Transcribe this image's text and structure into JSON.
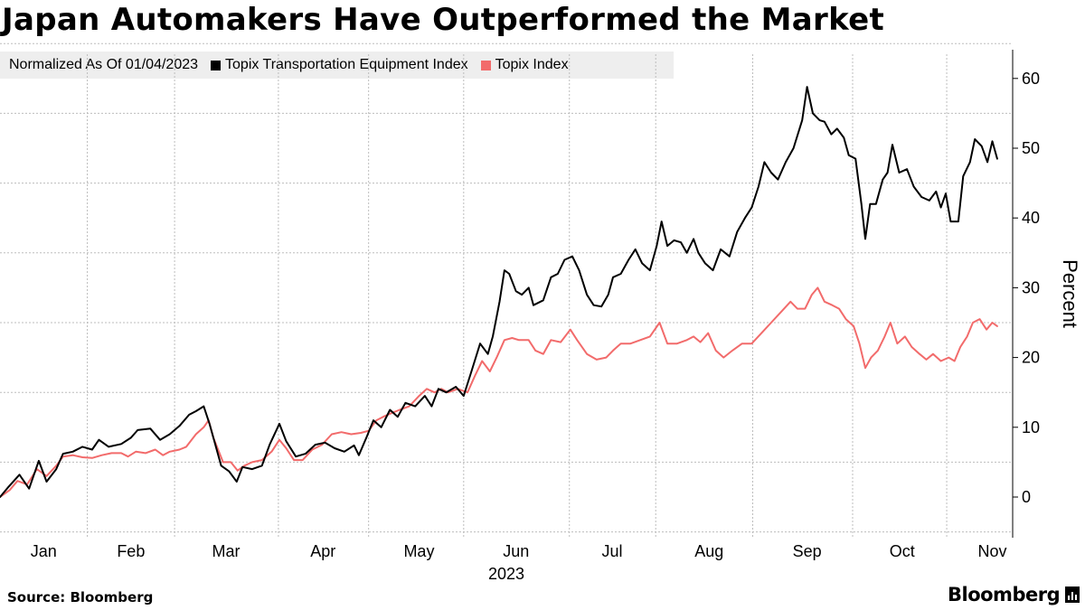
{
  "title": "Japan Automakers Have Outperformed the Market",
  "legend": {
    "lead": "Normalized As Of 01/04/2023",
    "entries": [
      {
        "label": "Topix Transportation Equipment Index",
        "color": "#000000"
      },
      {
        "label": "Topix Index",
        "color": "#f26b6b"
      }
    ]
  },
  "source": "Source: Bloomberg",
  "brand": "Bloomberg",
  "chart_data": {
    "type": "line",
    "title": "Japan Automakers Have Outperformed the Market",
    "xlabel": "2023",
    "ylabel": "Percent",
    "ylim": [
      -5,
      65
    ],
    "y_ticks": [
      0,
      10,
      20,
      30,
      40,
      50,
      60
    ],
    "grid": true,
    "year_label": "2023",
    "x_domain": [
      0,
      10.3
    ],
    "month_ticks": [
      {
        "label": "Jan",
        "x": 0.45
      },
      {
        "label": "Feb",
        "x": 1.35
      },
      {
        "label": "Mar",
        "x": 2.33
      },
      {
        "label": "Apr",
        "x": 3.33
      },
      {
        "label": "May",
        "x": 4.32
      },
      {
        "label": "Jun",
        "x": 5.32
      },
      {
        "label": "Jul",
        "x": 6.31
      },
      {
        "label": "Aug",
        "x": 7.31
      },
      {
        "label": "Sep",
        "x": 8.32
      },
      {
        "label": "Oct",
        "x": 9.3
      },
      {
        "label": "Nov",
        "x": 10.23
      }
    ],
    "grid_x": [
      0.9,
      1.8,
      2.87,
      3.8,
      4.78,
      5.87,
      6.76,
      7.76,
      8.79,
      9.76
    ],
    "series": [
      {
        "name": "Topix Transportation Equipment Index",
        "color": "#000000",
        "points": [
          [
            0,
            0
          ],
          [
            0.09,
            1.5
          ],
          [
            0.2,
            3.2
          ],
          [
            0.3,
            1.2
          ],
          [
            0.4,
            5.2
          ],
          [
            0.48,
            2.2
          ],
          [
            0.58,
            4
          ],
          [
            0.65,
            6.2
          ],
          [
            0.75,
            6.5
          ],
          [
            0.85,
            7.2
          ],
          [
            0.95,
            6.8
          ],
          [
            1.02,
            8.2
          ],
          [
            1.12,
            7.2
          ],
          [
            1.25,
            7.6
          ],
          [
            1.35,
            8.5
          ],
          [
            1.42,
            9.6
          ],
          [
            1.55,
            9.8
          ],
          [
            1.65,
            8.2
          ],
          [
            1.75,
            9
          ],
          [
            1.85,
            10.2
          ],
          [
            1.95,
            11.8
          ],
          [
            2.02,
            12.3
          ],
          [
            2.1,
            13
          ],
          [
            2.16,
            10.5
          ],
          [
            2.28,
            4.5
          ],
          [
            2.36,
            3.7
          ],
          [
            2.44,
            2.2
          ],
          [
            2.5,
            4.3
          ],
          [
            2.6,
            4
          ],
          [
            2.7,
            4.5
          ],
          [
            2.78,
            7.5
          ],
          [
            2.88,
            10.5
          ],
          [
            2.95,
            8
          ],
          [
            3.05,
            5.8
          ],
          [
            3.15,
            6.2
          ],
          [
            3.25,
            7.5
          ],
          [
            3.35,
            7.8
          ],
          [
            3.45,
            7
          ],
          [
            3.55,
            6.5
          ],
          [
            3.65,
            7.4
          ],
          [
            3.7,
            6
          ],
          [
            3.78,
            8.6
          ],
          [
            3.85,
            11
          ],
          [
            3.93,
            10
          ],
          [
            4.02,
            12.5
          ],
          [
            4.1,
            11.5
          ],
          [
            4.18,
            13.5
          ],
          [
            4.28,
            13
          ],
          [
            4.38,
            14.5
          ],
          [
            4.45,
            13
          ],
          [
            4.52,
            15.5
          ],
          [
            4.6,
            15
          ],
          [
            4.7,
            15.8
          ],
          [
            4.78,
            14.5
          ],
          [
            4.86,
            18
          ],
          [
            4.95,
            22
          ],
          [
            5.03,
            20.5
          ],
          [
            5.08,
            23
          ],
          [
            5.15,
            28
          ],
          [
            5.2,
            32.5
          ],
          [
            5.25,
            32
          ],
          [
            5.32,
            29.5
          ],
          [
            5.38,
            29
          ],
          [
            5.45,
            30
          ],
          [
            5.5,
            27.5
          ],
          [
            5.6,
            28.2
          ],
          [
            5.68,
            31.5
          ],
          [
            5.75,
            32
          ],
          [
            5.82,
            34
          ],
          [
            5.9,
            34.5
          ],
          [
            5.97,
            32.5
          ],
          [
            6.05,
            29
          ],
          [
            6.12,
            27.5
          ],
          [
            6.2,
            27.3
          ],
          [
            6.27,
            29
          ],
          [
            6.32,
            31.5
          ],
          [
            6.4,
            32
          ],
          [
            6.48,
            34
          ],
          [
            6.55,
            35.5
          ],
          [
            6.62,
            33.5
          ],
          [
            6.7,
            32.5
          ],
          [
            6.77,
            36
          ],
          [
            6.82,
            39.5
          ],
          [
            6.88,
            36
          ],
          [
            6.95,
            36.8
          ],
          [
            7.02,
            36.5
          ],
          [
            7.08,
            35
          ],
          [
            7.15,
            37
          ],
          [
            7.2,
            35
          ],
          [
            7.27,
            33.5
          ],
          [
            7.35,
            32.5
          ],
          [
            7.43,
            35.5
          ],
          [
            7.52,
            34.5
          ],
          [
            7.6,
            38
          ],
          [
            7.68,
            40
          ],
          [
            7.75,
            41.5
          ],
          [
            7.82,
            44.5
          ],
          [
            7.88,
            48
          ],
          [
            7.95,
            46.5
          ],
          [
            8.02,
            45.5
          ],
          [
            8.1,
            48
          ],
          [
            8.18,
            50
          ],
          [
            8.27,
            54
          ],
          [
            8.32,
            58.8
          ],
          [
            8.38,
            55
          ],
          [
            8.45,
            54
          ],
          [
            8.5,
            53.8
          ],
          [
            8.57,
            52
          ],
          [
            8.63,
            52.8
          ],
          [
            8.7,
            51.5
          ],
          [
            8.75,
            49
          ],
          [
            8.82,
            48.5
          ],
          [
            8.88,
            42
          ],
          [
            8.92,
            37
          ],
          [
            8.97,
            42
          ],
          [
            9.03,
            42
          ],
          [
            9.1,
            45.5
          ],
          [
            9.15,
            46.5
          ],
          [
            9.2,
            50.5
          ],
          [
            9.27,
            46.5
          ],
          [
            9.35,
            47
          ],
          [
            9.42,
            44.5
          ],
          [
            9.5,
            43
          ],
          [
            9.58,
            42.5
          ],
          [
            9.65,
            43.8
          ],
          [
            9.7,
            41.5
          ],
          [
            9.75,
            43.5
          ],
          [
            9.8,
            39.5
          ],
          [
            9.88,
            39.5
          ],
          [
            9.93,
            46
          ],
          [
            10,
            48
          ],
          [
            10.05,
            51.3
          ],
          [
            10.12,
            50.3
          ],
          [
            10.18,
            48
          ],
          [
            10.23,
            51
          ],
          [
            10.28,
            48.5
          ]
        ]
      },
      {
        "name": "Topix Index",
        "color": "#f26b6b",
        "points": [
          [
            0,
            0
          ],
          [
            0.1,
            1
          ],
          [
            0.18,
            2.3
          ],
          [
            0.28,
            1.8
          ],
          [
            0.38,
            4
          ],
          [
            0.48,
            3
          ],
          [
            0.58,
            4.5
          ],
          [
            0.65,
            5.8
          ],
          [
            0.75,
            6
          ],
          [
            0.85,
            5.7
          ],
          [
            0.95,
            5.6
          ],
          [
            1.05,
            6
          ],
          [
            1.15,
            6.3
          ],
          [
            1.25,
            6.3
          ],
          [
            1.32,
            5.8
          ],
          [
            1.4,
            6.5
          ],
          [
            1.5,
            6.3
          ],
          [
            1.6,
            6.8
          ],
          [
            1.68,
            6
          ],
          [
            1.75,
            6.5
          ],
          [
            1.85,
            6.8
          ],
          [
            1.92,
            7.2
          ],
          [
            2.02,
            9
          ],
          [
            2.1,
            10
          ],
          [
            2.15,
            11
          ],
          [
            2.2,
            8.5
          ],
          [
            2.3,
            5
          ],
          [
            2.38,
            5
          ],
          [
            2.45,
            3.8
          ],
          [
            2.52,
            4.5
          ],
          [
            2.6,
            5
          ],
          [
            2.7,
            5.3
          ],
          [
            2.8,
            6.5
          ],
          [
            2.88,
            8.2
          ],
          [
            2.95,
            7
          ],
          [
            3.03,
            5.3
          ],
          [
            3.12,
            5.3
          ],
          [
            3.22,
            6.8
          ],
          [
            3.32,
            7.5
          ],
          [
            3.42,
            9
          ],
          [
            3.52,
            9.3
          ],
          [
            3.62,
            9
          ],
          [
            3.72,
            9.2
          ],
          [
            3.8,
            9.5
          ],
          [
            3.88,
            11
          ],
          [
            3.95,
            11.5
          ],
          [
            4.03,
            12
          ],
          [
            4.12,
            12.5
          ],
          [
            4.22,
            13
          ],
          [
            4.32,
            14.5
          ],
          [
            4.4,
            15.5
          ],
          [
            4.48,
            15
          ],
          [
            4.55,
            15.5
          ],
          [
            4.62,
            15
          ],
          [
            4.72,
            15.5
          ],
          [
            4.82,
            15
          ],
          [
            4.9,
            17.5
          ],
          [
            4.97,
            19.5
          ],
          [
            5.05,
            18
          ],
          [
            5.12,
            20
          ],
          [
            5.2,
            22.5
          ],
          [
            5.28,
            22.8
          ],
          [
            5.35,
            22.5
          ],
          [
            5.45,
            22.5
          ],
          [
            5.52,
            21
          ],
          [
            5.6,
            20.5
          ],
          [
            5.68,
            22.5
          ],
          [
            5.78,
            22.2
          ],
          [
            5.88,
            24
          ],
          [
            5.95,
            22.5
          ],
          [
            6.05,
            20.5
          ],
          [
            6.15,
            19.7
          ],
          [
            6.25,
            20
          ],
          [
            6.32,
            21
          ],
          [
            6.4,
            22
          ],
          [
            6.5,
            22
          ],
          [
            6.6,
            22.5
          ],
          [
            6.7,
            23
          ],
          [
            6.8,
            25
          ],
          [
            6.88,
            22
          ],
          [
            6.98,
            22
          ],
          [
            7.08,
            22.5
          ],
          [
            7.15,
            23
          ],
          [
            7.22,
            22.2
          ],
          [
            7.3,
            23.5
          ],
          [
            7.38,
            21
          ],
          [
            7.46,
            20
          ],
          [
            7.55,
            21
          ],
          [
            7.65,
            22
          ],
          [
            7.75,
            22
          ],
          [
            7.85,
            23.5
          ],
          [
            7.95,
            25
          ],
          [
            8.05,
            26.5
          ],
          [
            8.15,
            28
          ],
          [
            8.22,
            27
          ],
          [
            8.3,
            27
          ],
          [
            8.37,
            29
          ],
          [
            8.43,
            30
          ],
          [
            8.5,
            28
          ],
          [
            8.58,
            27.5
          ],
          [
            8.65,
            27
          ],
          [
            8.72,
            25.5
          ],
          [
            8.8,
            24.5
          ],
          [
            8.86,
            22
          ],
          [
            8.92,
            18.5
          ],
          [
            8.98,
            20
          ],
          [
            9.05,
            21
          ],
          [
            9.12,
            23
          ],
          [
            9.18,
            25
          ],
          [
            9.25,
            22
          ],
          [
            9.33,
            23
          ],
          [
            9.4,
            21.5
          ],
          [
            9.48,
            20.5
          ],
          [
            9.55,
            19.7
          ],
          [
            9.62,
            20.5
          ],
          [
            9.7,
            19.5
          ],
          [
            9.78,
            20
          ],
          [
            9.84,
            19.5
          ],
          [
            9.9,
            21.5
          ],
          [
            9.97,
            23
          ],
          [
            10.03,
            25
          ],
          [
            10.1,
            25.5
          ],
          [
            10.17,
            24
          ],
          [
            10.23,
            25
          ],
          [
            10.28,
            24.5
          ]
        ]
      }
    ]
  }
}
